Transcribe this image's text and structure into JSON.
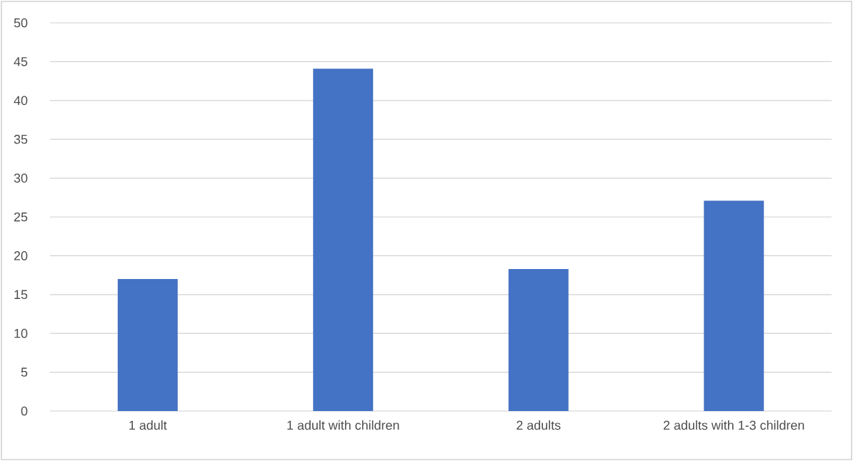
{
  "chart_data": {
    "type": "bar",
    "categories": [
      "1 adult",
      "1 adult with children",
      "2 adults",
      "2 adults with 1-3 children"
    ],
    "values": [
      17,
      44.1,
      18.3,
      27.1
    ],
    "color": "#4472c4",
    "ylim": [
      0,
      50
    ],
    "yticks": [
      0,
      5,
      10,
      15,
      20,
      25,
      30,
      35,
      40,
      45,
      50
    ],
    "grid": "y"
  }
}
